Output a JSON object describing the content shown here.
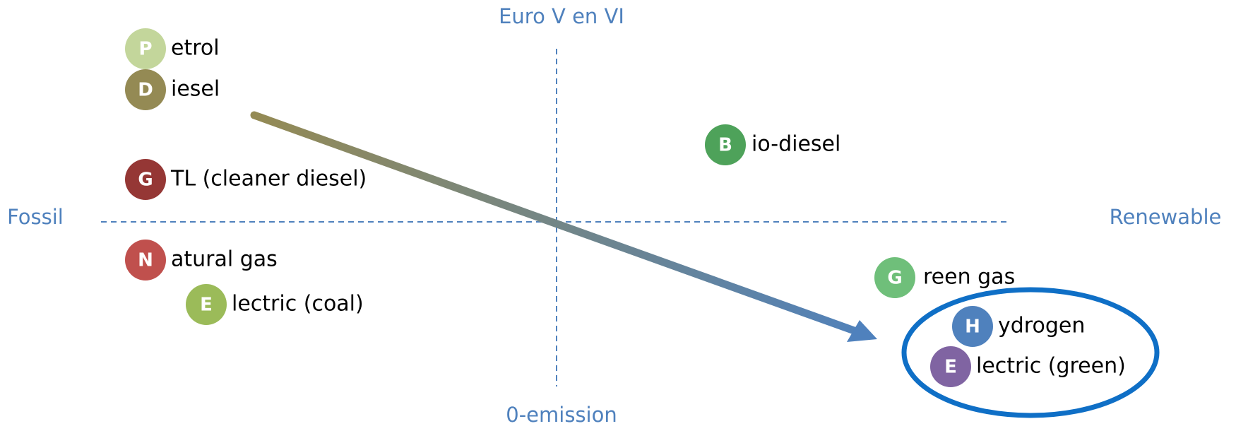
{
  "axes": {
    "top": "Euro V en VI",
    "bottom": "0-emission",
    "left": "Fossil",
    "right": "Renewable"
  },
  "items": [
    {
      "letter": "P",
      "text": "etrol"
    },
    {
      "letter": "D",
      "text": "iesel"
    },
    {
      "letter": "B",
      "text": "io-diesel"
    },
    {
      "letter": "G",
      "text": "TL (cleaner diesel)"
    },
    {
      "letter": "N",
      "text": "atural gas"
    },
    {
      "letter": "E",
      "text": "lectric (coal)"
    },
    {
      "letter": "G",
      "text": "reen gas"
    },
    {
      "letter": "H",
      "text": "ydrogen"
    },
    {
      "letter": "E",
      "text": "lectric (green)"
    }
  ]
}
